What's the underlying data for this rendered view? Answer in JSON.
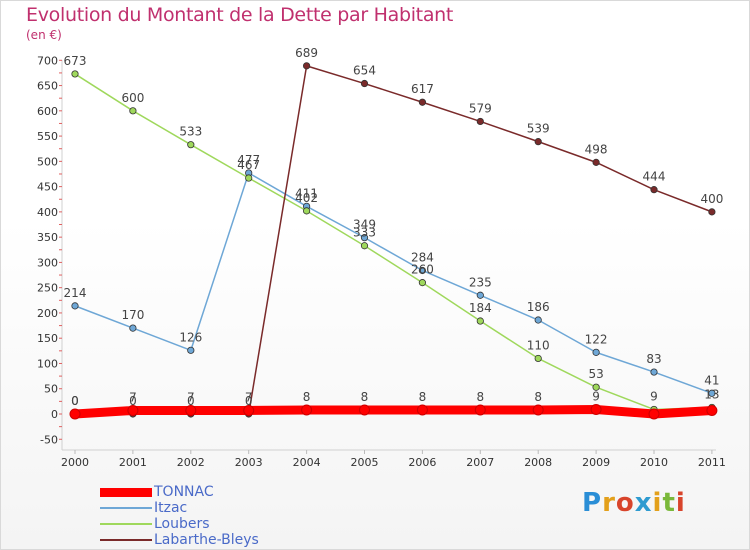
{
  "chart_data": {
    "type": "line",
    "title": "Evolution du Montant de la Dette par Habitant",
    "subtitle": "(en €)",
    "x": [
      "2000",
      "2001",
      "2002",
      "2003",
      "2004",
      "2005",
      "2006",
      "2007",
      "2008",
      "2009",
      "2010",
      "2011"
    ],
    "ylim": [
      -50,
      700
    ],
    "yticks": [
      -50,
      0,
      50,
      100,
      150,
      200,
      250,
      300,
      350,
      400,
      450,
      500,
      550,
      600,
      650,
      700
    ],
    "grid": false,
    "legend_position": "bottom-left",
    "series": [
      {
        "name": "TONNAC",
        "color": "#ff0000",
        "values": [
          0,
          7,
          7,
          7,
          8,
          8,
          8,
          8,
          8,
          9,
          0,
          7
        ],
        "labels": [
          "0",
          "7",
          "7",
          "7",
          "8",
          "8",
          "8",
          "8",
          "8",
          "9",
          "",
          ""
        ]
      },
      {
        "name": "Itzac",
        "color": "#6ea7d6",
        "values": [
          214,
          170,
          126,
          477,
          411,
          349,
          284,
          235,
          186,
          122,
          83,
          41
        ],
        "labels": [
          "214",
          "170",
          "126",
          "477",
          "411",
          "349",
          "284",
          "235",
          "186",
          "122",
          "83",
          "41"
        ]
      },
      {
        "name": "Loubers",
        "color": "#9fd85c",
        "values": [
          673,
          600,
          533,
          467,
          402,
          333,
          260,
          184,
          110,
          53,
          9,
          13
        ],
        "labels": [
          "673",
          "600",
          "533",
          "467",
          "402",
          "333",
          "260",
          "184",
          "110",
          "53",
          "9",
          "13"
        ]
      },
      {
        "name": "Labarthe-Bleys",
        "color": "#7a2a2a",
        "values": [
          0,
          0,
          0,
          0,
          689,
          654,
          617,
          579,
          539,
          498,
          444,
          400
        ],
        "labels": [
          "0",
          "0",
          "0",
          "0",
          "689",
          "654",
          "617",
          "579",
          "539",
          "498",
          "444",
          "400"
        ]
      }
    ]
  },
  "legend": {
    "items": [
      {
        "label": "TONNAC",
        "color": "#ff0000"
      },
      {
        "label": "Itzac",
        "color": "#6ea7d6"
      },
      {
        "label": "Loubers",
        "color": "#9fd85c"
      },
      {
        "label": "Labarthe-Bleys",
        "color": "#7a2a2a"
      }
    ]
  },
  "logo": {
    "letters": [
      "P",
      "r",
      "o",
      "x",
      "i",
      "t",
      "i"
    ]
  }
}
